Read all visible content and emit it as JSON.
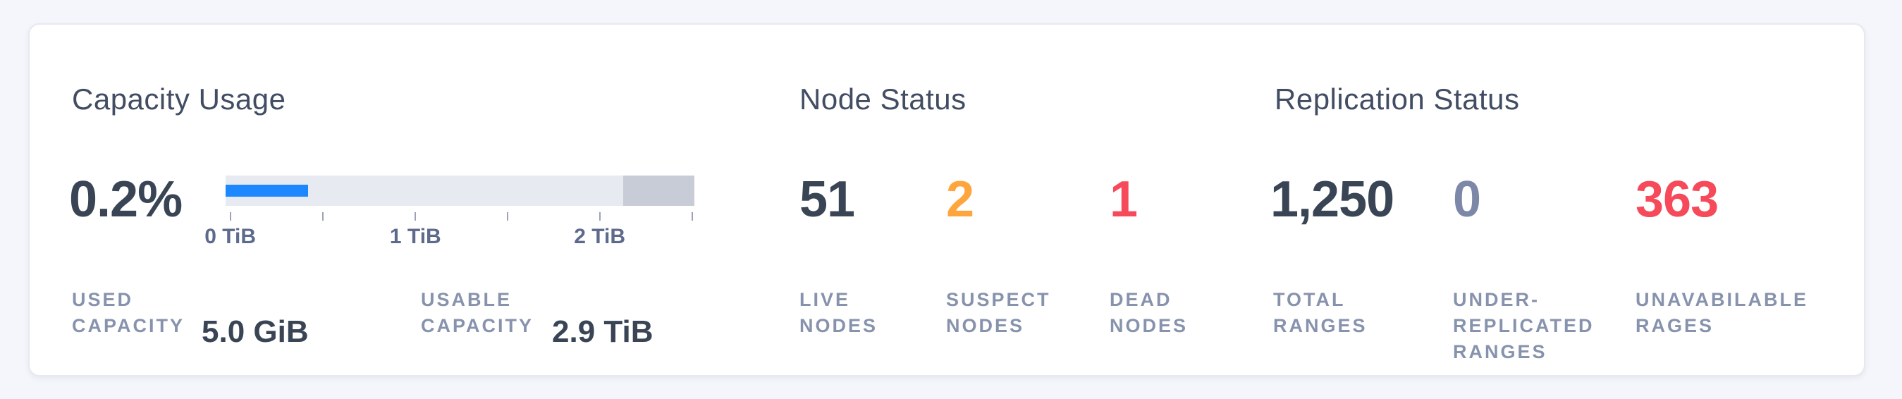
{
  "colors": {
    "page_bg": "#f4f6fb",
    "card_bg": "#ffffff",
    "card_border": "#e6e9f0",
    "title_text": "#424d63",
    "number_dark": "#394455",
    "number_warning": "#ffa53d",
    "number_danger": "#f64a5b",
    "number_muted": "#7d88a8",
    "label_muted": "#8793ad",
    "bar_used_blue": "#1d87ff",
    "bar_track_gray": "#e7eaf0",
    "bar_reserved_gray": "#c7ccd7",
    "tick_mark": "#9aa3b7",
    "tick_label": "#5d6a8c"
  },
  "capacity": {
    "title": "Capacity Usage",
    "percent": "0.2%",
    "chart": {
      "type": "bar",
      "used_pct": 17.6,
      "reserved_right_pct": 15.2,
      "axis_unit": "TiB",
      "ticks": [
        {
          "pos_pct": 1.0,
          "label": "0 TiB"
        },
        {
          "pos_pct": 20.8,
          "label": ""
        },
        {
          "pos_pct": 40.5,
          "label": "1 TiB"
        },
        {
          "pos_pct": 60.2,
          "label": ""
        },
        {
          "pos_pct": 79.8,
          "label": "2 TiB"
        },
        {
          "pos_pct": 99.5,
          "label": ""
        }
      ]
    },
    "stats": [
      {
        "label_lines": [
          "USED",
          "CAPACITY"
        ],
        "value": "5.0 GiB"
      },
      {
        "label_lines": [
          "USABLE",
          "CAPACITY"
        ],
        "value": "2.9 TiB"
      }
    ]
  },
  "node_status": {
    "title": "Node Status",
    "stats": [
      {
        "value": "51",
        "label_lines": [
          "LIVE",
          "NODES"
        ],
        "status": "dark"
      },
      {
        "value": "2",
        "label_lines": [
          "SUSPECT",
          "NODES"
        ],
        "status": "warning"
      },
      {
        "value": "1",
        "label_lines": [
          "DEAD",
          "NODES"
        ],
        "status": "danger"
      }
    ]
  },
  "replication_status": {
    "title": "Replication Status",
    "stats": [
      {
        "value": "1,250",
        "label_lines": [
          "TOTAL",
          "RANGES"
        ],
        "status": "dark"
      },
      {
        "value": "0",
        "label_lines": [
          "UNDER-",
          "REPLICATED",
          "RANGES"
        ],
        "status": "muted"
      },
      {
        "value": "363",
        "label_lines": [
          "UNAVABILABLE",
          "RAGES"
        ],
        "status": "danger"
      }
    ]
  }
}
